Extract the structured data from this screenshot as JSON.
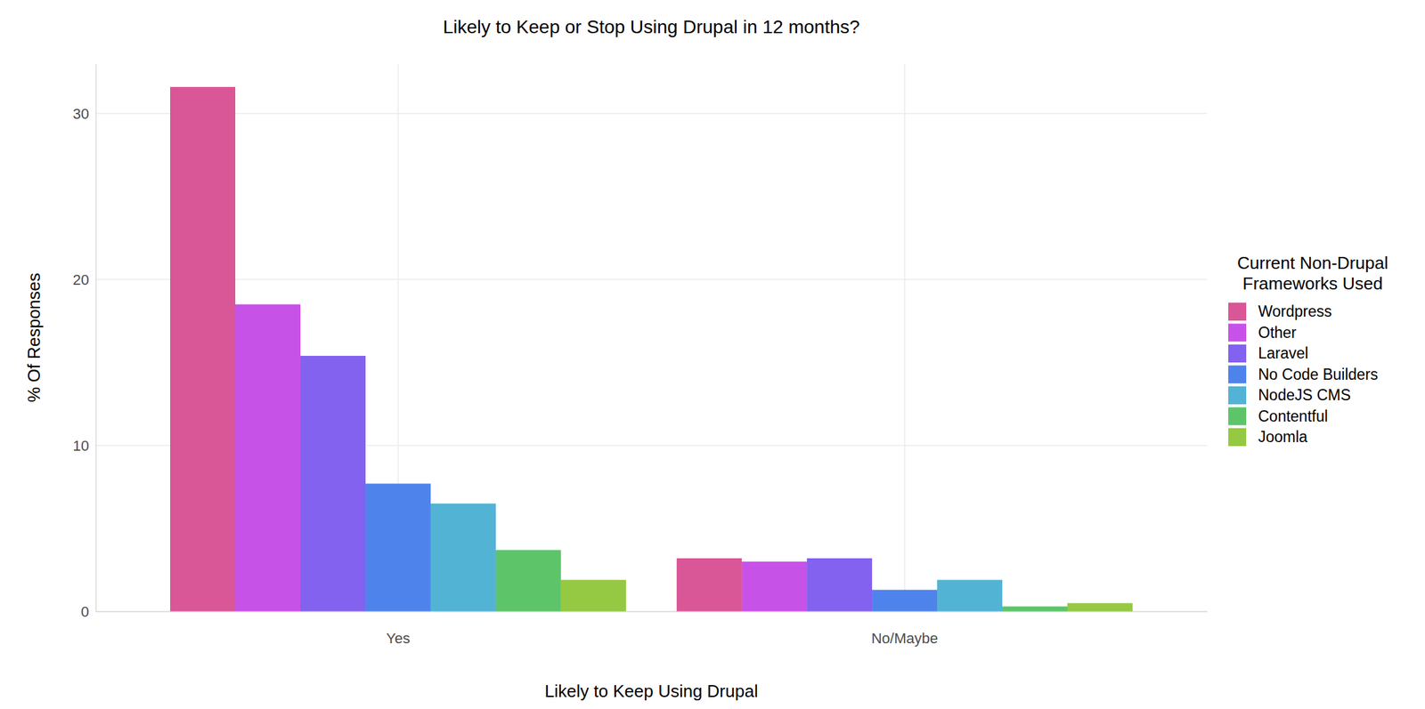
{
  "chart_data": {
    "type": "bar",
    "title": "Likely to Keep or Stop Using Drupal in 12 months?",
    "x_label": "Likely to Keep Using Drupal",
    "y_label": "% Of Responses",
    "legend_title": "Current Non-Drupal\nFrameworks Used",
    "categories": [
      "Yes",
      "No/Maybe"
    ],
    "series": [
      {
        "name": "Wordpress",
        "color": "#d95796",
        "values": [
          31.6,
          3.2
        ]
      },
      {
        "name": "Other",
        "color": "#c752e8",
        "values": [
          18.5,
          3.0
        ]
      },
      {
        "name": "Laravel",
        "color": "#8262ee",
        "values": [
          15.4,
          3.2
        ]
      },
      {
        "name": "No Code Builders",
        "color": "#4f83ec",
        "values": [
          7.7,
          1.3
        ]
      },
      {
        "name": "NodeJS CMS",
        "color": "#53b3d4",
        "values": [
          6.5,
          1.9
        ]
      },
      {
        "name": "Contentful",
        "color": "#5ec46a",
        "values": [
          3.7,
          0.3
        ]
      },
      {
        "name": "Joomla",
        "color": "#95c843",
        "values": [
          1.9,
          0.5
        ]
      }
    ],
    "ylim": [
      0,
      33
    ],
    "yticks": [
      0,
      10,
      20,
      30
    ],
    "grid": true,
    "legend": "right"
  }
}
